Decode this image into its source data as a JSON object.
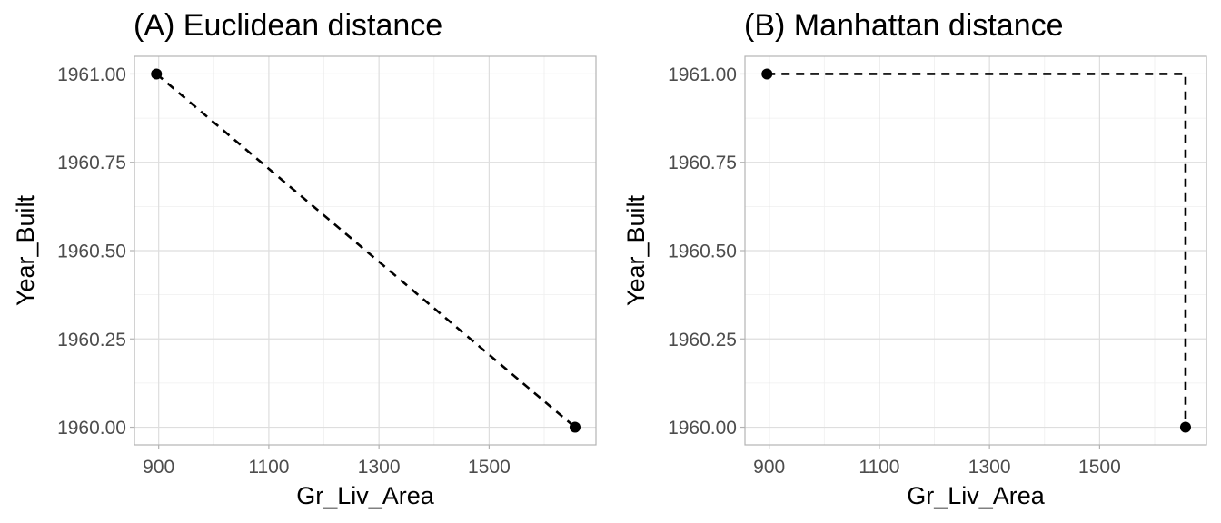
{
  "chart_data": [
    {
      "type": "scatter",
      "title": "(A) Euclidean distance",
      "xlabel": "Gr_Liv_Area",
      "ylabel": "Year_Built",
      "xlim": [
        856,
        1694
      ],
      "ylim": [
        1959.95,
        1961.05
      ],
      "x_ticks": [
        900,
        1100,
        1300,
        1500
      ],
      "y_ticks": [
        1960.0,
        1960.25,
        1960.5,
        1960.75,
        1961.0
      ],
      "x_tick_labels": [
        "900",
        "1100",
        "1300",
        "1500"
      ],
      "y_tick_labels": [
        "1960.00",
        "1960.25",
        "1960.50",
        "1960.75",
        "1961.00"
      ],
      "grid": true,
      "points": [
        {
          "x": 896,
          "y": 1961
        },
        {
          "x": 1656,
          "y": 1960
        }
      ],
      "connector": "euclidean"
    },
    {
      "type": "scatter",
      "title": "(B) Manhattan distance",
      "xlabel": "Gr_Liv_Area",
      "ylabel": "Year_Built",
      "xlim": [
        856,
        1694
      ],
      "ylim": [
        1959.95,
        1961.05
      ],
      "x_ticks": [
        900,
        1100,
        1300,
        1500
      ],
      "y_ticks": [
        1960.0,
        1960.25,
        1960.5,
        1960.75,
        1961.0
      ],
      "x_tick_labels": [
        "900",
        "1100",
        "1300",
        "1500"
      ],
      "y_tick_labels": [
        "1960.00",
        "1960.25",
        "1960.50",
        "1960.75",
        "1961.00"
      ],
      "grid": true,
      "points": [
        {
          "x": 896,
          "y": 1961
        },
        {
          "x": 1656,
          "y": 1960
        }
      ],
      "connector": "manhattan"
    }
  ]
}
